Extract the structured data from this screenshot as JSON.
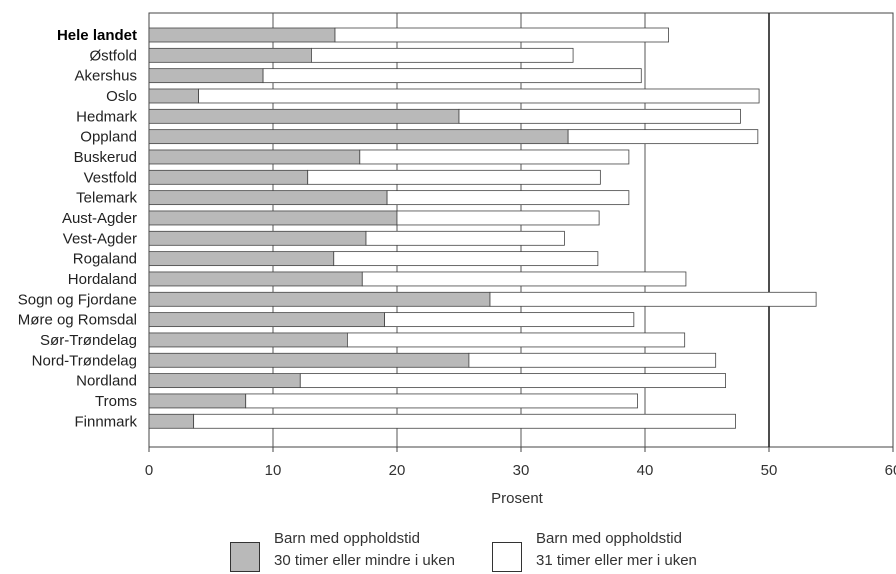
{
  "chart_data": {
    "type": "bar",
    "orientation": "horizontal",
    "stacked": true,
    "categories": [
      "Hele landet",
      "Østfold",
      "Akershus",
      "Oslo",
      "Hedmark",
      "Oppland",
      "Buskerud",
      "Vestfold",
      "Telemark",
      "Aust-Agder",
      "Vest-Agder",
      "Rogaland",
      "Hordaland",
      "Sogn og Fjordane",
      "Møre og Romsdal",
      "Sør-Trøndelag",
      "Nord-Trøndelag",
      "Nordland",
      "Troms",
      "Finnmark"
    ],
    "series": [
      {
        "name": "Barn med oppholdstid 30 timer eller mindre i uken",
        "color": "#b9b9b9",
        "values": [
          15.0,
          13.1,
          9.2,
          4.0,
          25.0,
          33.8,
          17.0,
          12.8,
          19.2,
          20.0,
          17.5,
          14.9,
          17.2,
          27.5,
          19.0,
          16.0,
          25.8,
          12.2,
          7.8,
          3.6
        ]
      },
      {
        "name": "Barn med oppholdstid 31 timer eller mer i uken",
        "color": "#ffffff",
        "values": [
          26.9,
          21.1,
          30.5,
          45.2,
          22.7,
          15.3,
          21.7,
          23.6,
          19.5,
          16.3,
          16.0,
          21.3,
          26.1,
          26.3,
          20.1,
          27.2,
          19.9,
          34.3,
          31.6,
          43.7
        ]
      }
    ],
    "xlabel": "Prosent",
    "xlim": [
      0,
      60
    ],
    "xticks": [
      0,
      10,
      20,
      30,
      40,
      50,
      60
    ],
    "bold_categories": [
      "Hele landet"
    ],
    "reference_line": 50,
    "grid": true,
    "legend_position": "bottom",
    "legend": [
      {
        "line1": "Barn med oppholdstid",
        "line2": "30 timer eller mindre i uken"
      },
      {
        "line1": "Barn med oppholdstid",
        "line2": "31 timer eller mer i uken"
      }
    ]
  }
}
